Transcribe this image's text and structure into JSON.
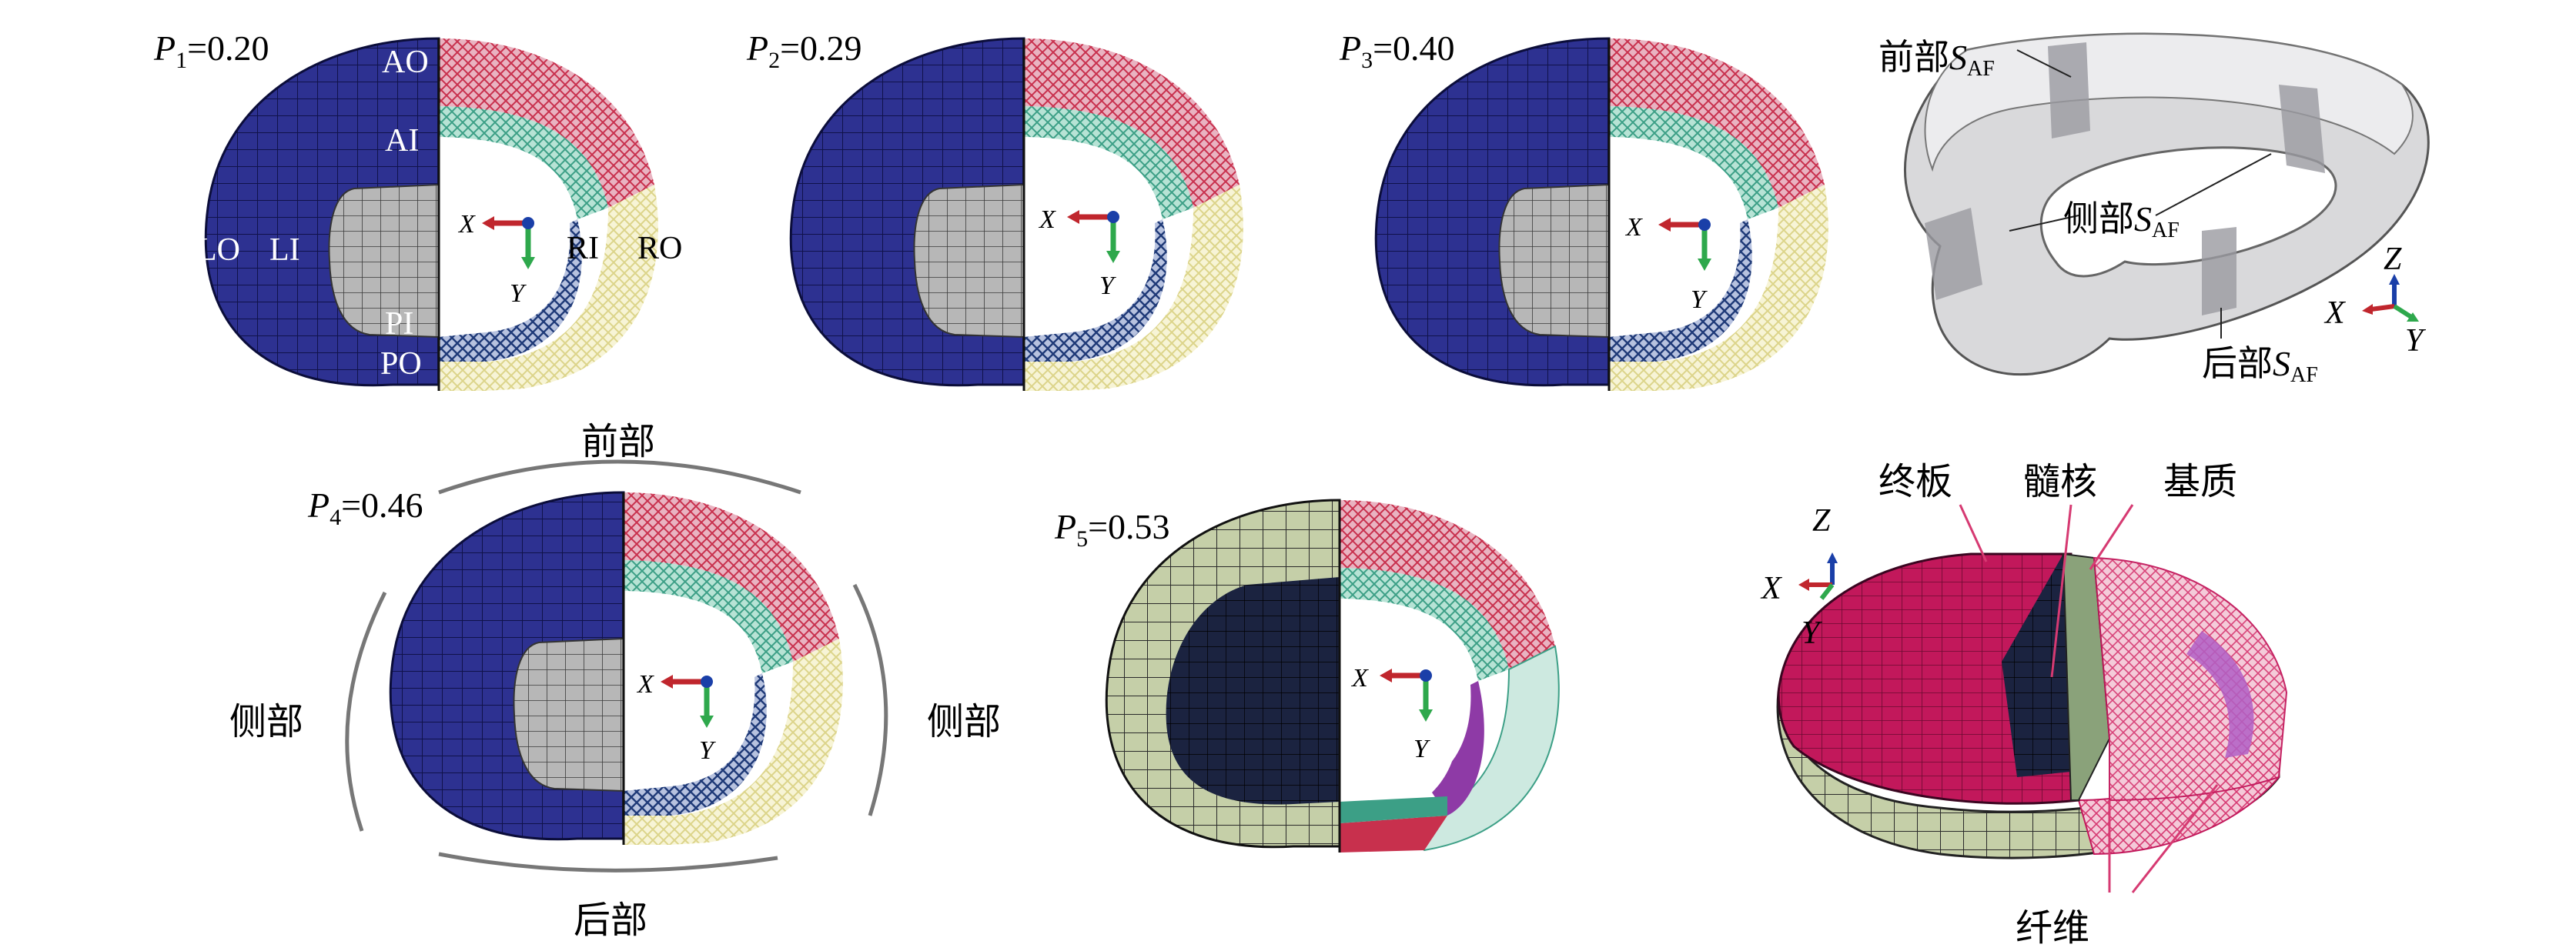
{
  "colors": {
    "outer_lateral": "#2d3191",
    "nucleus": "#b7b7b7",
    "anterior_outer": "#c8304d",
    "anterior_inner": "#3c9f86",
    "right_outer": "#e8e3a4",
    "posterior_inner": "#1f3a78",
    "axis_x": "#c0262d",
    "axis_y": "#2ea84c",
    "axis_z": "#1a3fa8",
    "mesh_gray": "#a9a9a9",
    "endplate": "#c2185b",
    "p5_outer": "#c5cfa8",
    "p5_nucleus": "#1b2340",
    "purple": "#8e3aa6"
  },
  "panels": [
    {
      "p_label": "P",
      "p_sub": "1",
      "p_value": "=0.20"
    },
    {
      "p_label": "P",
      "p_sub": "2",
      "p_value": "=0.29"
    },
    {
      "p_label": "P",
      "p_sub": "3",
      "p_value": "=0.40"
    },
    {
      "p_label": "P",
      "p_sub": "4",
      "p_value": "=0.46"
    },
    {
      "p_label": "P",
      "p_sub": "5",
      "p_value": "=0.53"
    }
  ],
  "region_labels": {
    "ao": "AO",
    "ai": "AI",
    "lo": "LO",
    "li": "LI",
    "ri": "RI",
    "ro": "RO",
    "pi": "PI",
    "po": "PO"
  },
  "axes": {
    "x": "X",
    "y": "Y",
    "z": "Z"
  },
  "directions": {
    "front": "前部",
    "side_left": "侧部",
    "side_right": "侧部",
    "back": "后部"
  },
  "saf": {
    "front": "前部",
    "side": "侧部",
    "back": "后部",
    "s": "S",
    "sub": "AF"
  },
  "model_labels": {
    "endplate": "终板",
    "nucleus": "髓核",
    "matrix": "基质",
    "fiber": "纤维"
  }
}
